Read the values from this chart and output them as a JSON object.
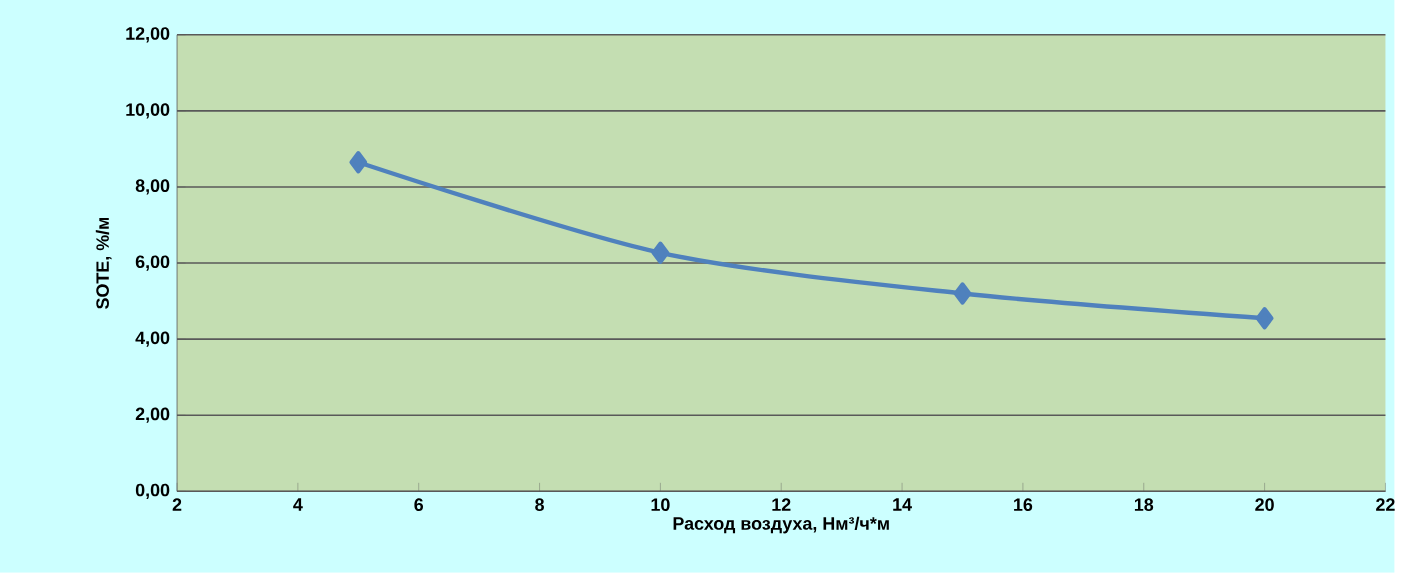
{
  "chart_data": {
    "type": "line",
    "xlabel": "Расход воздуха, Нм³/ч*м",
    "ylabel": "SOTE, %/м",
    "x": [
      5,
      10,
      15,
      20
    ],
    "series": [
      {
        "color": "#4f81bd",
        "values": [
          8.65,
          6.27,
          5.2,
          4.55
        ]
      }
    ],
    "xlim": [
      2,
      22
    ],
    "xticks": [
      2,
      4,
      6,
      8,
      10,
      12,
      14,
      16,
      18,
      20,
      22
    ],
    "ylim": [
      0,
      12
    ],
    "yticks": [
      {
        "value": 0,
        "label": "0,00"
      },
      {
        "value": 2,
        "label": "2,00"
      },
      {
        "value": 4,
        "label": "4,00"
      },
      {
        "value": 6,
        "label": "6,00"
      },
      {
        "value": 8,
        "label": "8,00"
      },
      {
        "value": 10,
        "label": "10,00"
      },
      {
        "value": 12,
        "label": "12,00"
      }
    ],
    "grid": "y",
    "marker": "diamond"
  }
}
